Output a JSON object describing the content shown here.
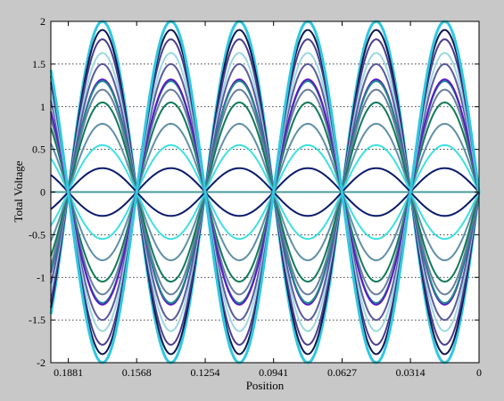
{
  "chart_data": {
    "type": "line",
    "title": "",
    "xlabel": "Position",
    "ylabel": "Total Voltage",
    "xlim": [
      0.1961,
      0
    ],
    "ylim": [
      -2,
      2
    ],
    "x_reversed": true,
    "x_ticks": [
      0.1881,
      0.1568,
      0.1254,
      0.0941,
      0.0627,
      0.0314,
      0
    ],
    "x_tick_labels": [
      "0.1881",
      "0.1568",
      "0.1254",
      "0.0941",
      "0.0627",
      "0.0314",
      "0"
    ],
    "y_ticks": [
      -2,
      -1.5,
      -1,
      -0.5,
      0,
      0.5,
      1,
      1.5,
      2
    ],
    "y_tick_labels": [
      "-2",
      "-1.5",
      "-1",
      "-0.5",
      "0",
      "0.5",
      "1",
      "1.5",
      "2"
    ],
    "grid": {
      "y": true,
      "x": false,
      "style": "dotted"
    },
    "legend": "none",
    "wavelength": 0.0627,
    "zero_positions": [
      0.1568,
      0.0941,
      0.0314
    ],
    "series": [
      {
        "amplitude": 2.0,
        "color": "#2ec8e0"
      },
      {
        "amplitude": 1.9,
        "color": "#101850"
      },
      {
        "amplitude": 1.79,
        "color": "#4a3d8f"
      },
      {
        "amplitude": 1.63,
        "color": "#9dd7df"
      },
      {
        "amplitude": 1.5,
        "color": "#5a5a9e"
      },
      {
        "amplitude": 1.32,
        "color": "#5b18c8"
      },
      {
        "amplitude": 1.3,
        "color": "#1b8a8a"
      },
      {
        "amplitude": 1.2,
        "color": "#6a7f9e"
      },
      {
        "amplitude": 1.05,
        "color": "#0f7a5a"
      },
      {
        "amplitude": 0.8,
        "color": "#5f8fa8"
      },
      {
        "amplitude": 0.55,
        "color": "#3de0e0"
      },
      {
        "amplitude": 0.28,
        "color": "#0a1a6a"
      },
      {
        "amplitude": 0.0,
        "color": "#4a9a9a"
      },
      {
        "amplitude": -0.28,
        "color": "#0a1a6a"
      },
      {
        "amplitude": -0.55,
        "color": "#3de0e0"
      },
      {
        "amplitude": -0.8,
        "color": "#5f8fa8"
      },
      {
        "amplitude": -1.05,
        "color": "#0f7a5a"
      },
      {
        "amplitude": -1.2,
        "color": "#6a7f9e"
      },
      {
        "amplitude": -1.3,
        "color": "#1b8a8a"
      },
      {
        "amplitude": -1.32,
        "color": "#5b18c8"
      },
      {
        "amplitude": -1.5,
        "color": "#5a5a9e"
      },
      {
        "amplitude": -1.63,
        "color": "#9dd7df"
      },
      {
        "amplitude": -1.79,
        "color": "#4a3d8f"
      },
      {
        "amplitude": -1.9,
        "color": "#101850"
      },
      {
        "amplitude": -2.0,
        "color": "#2ec8e0"
      }
    ]
  }
}
